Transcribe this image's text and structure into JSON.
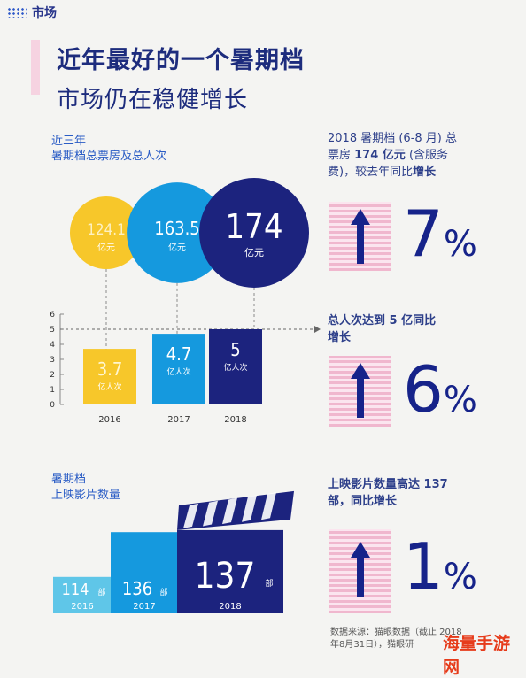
{
  "section": {
    "label": "市场"
  },
  "title": {
    "line1": "近年最好的一个暑期档",
    "line2": "市场仍在稳健增长"
  },
  "boxoffice_chart": {
    "subtitle_line1": "近三年",
    "subtitle_line2": "暑期档总票房及总人次",
    "unit": "亿元",
    "attendance_unit": "亿人次"
  },
  "films_chart": {
    "subtitle_line1": "暑期档",
    "subtitle_line2": "上映影片数量",
    "unit": "部"
  },
  "right_notes": {
    "note1_line1": "2018 暑期档 (6-8 月) 总",
    "note1_line2a": "票房 ",
    "note1_line2b": "174 亿元",
    "note1_line2c": " (含服务",
    "note1_line3a": "费)，较去年同比",
    "note1_line3b": "增长",
    "pct1": "7",
    "note2_line1": "总人次达到 5 亿同比",
    "note2_line2": "增长",
    "pct2": "6",
    "note3_line1": "上映影片数量高达 137",
    "note3_line2a": "部，同比",
    "note3_line2b": "增长",
    "pct3": "1",
    "pct_symbol": "%"
  },
  "source": {
    "line1": "数据来源：猫眼数据（截止 2018",
    "line2": "年8月31日），猫眼研"
  },
  "watermark": "海量手游网",
  "chart_data": [
    {
      "type": "bubble",
      "title": "近三年 暑期档总票房及总人次",
      "categories": [
        "2016",
        "2017",
        "2018"
      ],
      "values": [
        124.1,
        163.5,
        174
      ],
      "unit": "亿元",
      "colors": [
        "#f7c72a",
        "#1599de",
        "#1c237e"
      ]
    },
    {
      "type": "bar",
      "categories": [
        "2016",
        "2017",
        "2018"
      ],
      "values": [
        3.7,
        4.7,
        5
      ],
      "unit": "亿人次",
      "ylim": [
        0,
        6
      ],
      "yticks": [
        "0",
        "1",
        "2",
        "3",
        "4",
        "5",
        "6"
      ],
      "colors": [
        "#f7c72a",
        "#1599de",
        "#1c237e"
      ]
    },
    {
      "type": "bar",
      "title": "暑期档 上映影片数量",
      "categories": [
        "2016",
        "2017",
        "2018"
      ],
      "values": [
        114,
        136,
        137
      ],
      "unit": "部",
      "colors": [
        "#5fc6e8",
        "#1599de",
        "#1c237e"
      ]
    }
  ]
}
